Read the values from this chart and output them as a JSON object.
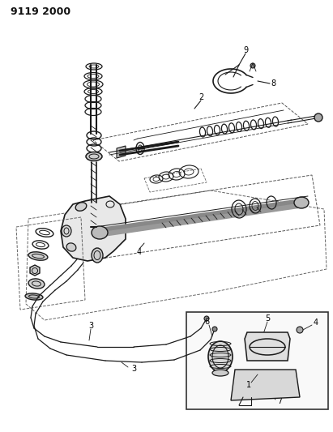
{
  "title": "9119 2000",
  "bg_color": "#ffffff",
  "line_color": "#1a1a1a",
  "fig_width": 4.11,
  "fig_height": 5.33,
  "dpi": 100
}
